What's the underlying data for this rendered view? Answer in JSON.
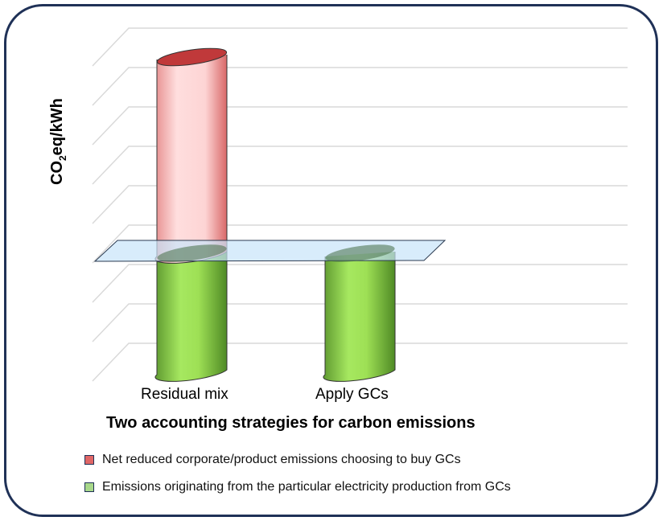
{
  "chart_data": {
    "type": "bar",
    "style": "3d-cylinder-stacked",
    "title": "",
    "xlabel": "Two accounting strategies for carbon emissions",
    "ylabel_main": "CO",
    "ylabel_sub": "2",
    "ylabel_rest": "eq/kWh",
    "categories": [
      "Residual mix",
      "Apply GCs"
    ],
    "series": [
      {
        "name": "Emissions originating from the particular electricity production from GCs",
        "color": "#9be05a",
        "values": [
          3,
          3
        ]
      },
      {
        "name": "Net reduced corporate/product emissions choosing to buy GCs",
        "color": "#f8c8c8",
        "values": [
          5,
          0
        ]
      }
    ],
    "legend_order": [
      1,
      0
    ],
    "legend_swatch_colors": [
      "#e06666",
      "#a8d88a"
    ],
    "reference_plane_value": 3,
    "ylim": [
      0,
      8
    ],
    "grid": true,
    "legend_placement": "bottom"
  }
}
